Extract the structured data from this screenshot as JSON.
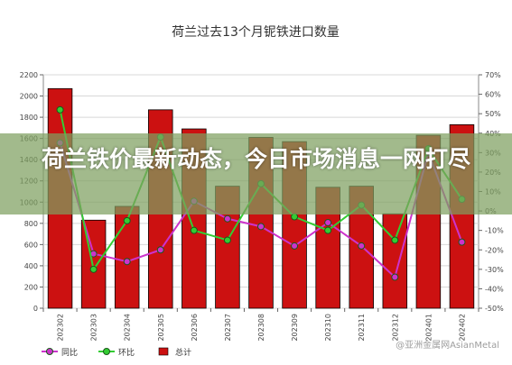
{
  "headline": "荷兰铁价最新动态，今日市场消息一网打尽",
  "watermark": "@亚洲金属网AsianMetal",
  "chart_data": {
    "type": "bar",
    "title": "荷兰过去13个月铌铁进口数量",
    "categories": [
      "202302",
      "202303",
      "202304",
      "202305",
      "202306",
      "202307",
      "202308",
      "202309",
      "202310",
      "202311",
      "202312",
      "202401",
      "202402"
    ],
    "series": [
      {
        "name": "总计",
        "type": "bar",
        "axis": "left",
        "color": "#cc1111",
        "values": [
          2070,
          830,
          960,
          1870,
          1690,
          1150,
          1610,
          1570,
          1140,
          1150,
          890,
          1630,
          1730
        ]
      },
      {
        "name": "同比",
        "type": "line",
        "axis": "right",
        "color": "#cc33cc",
        "values": [
          35,
          -22,
          -26,
          -20,
          5,
          -4,
          -8,
          -18,
          -6,
          -18,
          -34,
          30,
          -16
        ]
      },
      {
        "name": "环比",
        "type": "line",
        "axis": "right",
        "color": "#33cc33",
        "values": [
          52,
          -30,
          -5,
          38,
          -10,
          -15,
          14,
          -3,
          -10,
          3,
          -15,
          32,
          6
        ]
      }
    ],
    "left_axis": {
      "min": 0,
      "max": 2200,
      "step": 200,
      "ticks": [
        "0",
        "200",
        "400",
        "600",
        "800",
        "1000",
        "1200",
        "1400",
        "1600",
        "1800",
        "2000",
        "2200"
      ]
    },
    "right_axis": {
      "min": -50,
      "max": 70,
      "step": 10,
      "ticks": [
        "-50%",
        "-40%",
        "-30%",
        "-20%",
        "-10%",
        "0%",
        "10%",
        "20%",
        "30%",
        "40%",
        "50%",
        "60%",
        "70%"
      ]
    },
    "grid": true,
    "legend_position": "bottom-left"
  }
}
